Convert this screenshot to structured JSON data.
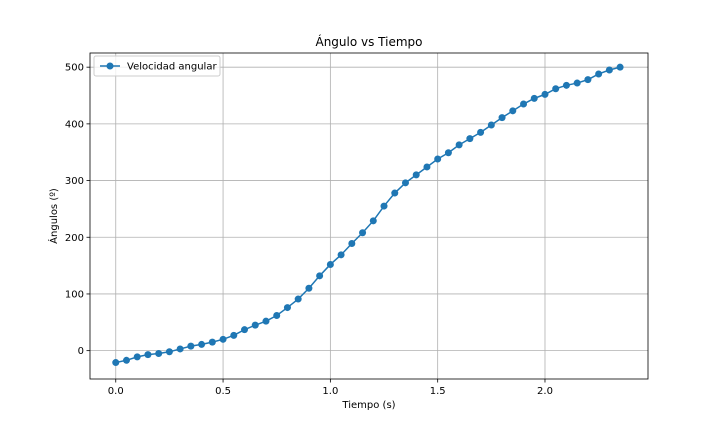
{
  "chart_data": {
    "type": "line",
    "title": "Ángulo vs Tiempo",
    "xlabel": "Tiempo (s)",
    "ylabel": "Ángulos (º)",
    "xlim": [
      -0.12,
      2.48
    ],
    "ylim": [
      -50,
      525
    ],
    "xticks": [
      0.0,
      0.5,
      1.0,
      1.5,
      2.0
    ],
    "xtick_labels": [
      "0.0",
      "0.5",
      "1.0",
      "1.5",
      "2.0"
    ],
    "yticks": [
      0,
      100,
      200,
      300,
      400,
      500
    ],
    "ytick_labels": [
      "0",
      "100",
      "200",
      "300",
      "400",
      "500"
    ],
    "grid": true,
    "legend": "upper-left",
    "series": [
      {
        "name": "Velocidad angular",
        "color": "#1f77b4",
        "marker": "circle",
        "x": [
          0.0,
          0.05,
          0.1,
          0.15,
          0.2,
          0.25,
          0.3,
          0.35,
          0.4,
          0.45,
          0.5,
          0.55,
          0.6,
          0.65,
          0.7,
          0.75,
          0.8,
          0.85,
          0.9,
          0.95,
          1.0,
          1.05,
          1.1,
          1.15,
          1.2,
          1.25,
          1.3,
          1.35,
          1.4,
          1.45,
          1.5,
          1.55,
          1.6,
          1.65,
          1.7,
          1.75,
          1.8,
          1.85,
          1.9,
          1.95,
          2.0,
          2.05,
          2.1,
          2.15,
          2.2,
          2.25,
          2.3,
          2.35
        ],
        "y": [
          -21,
          -17,
          -11,
          -7,
          -5,
          -2,
          3,
          8,
          11,
          15,
          20,
          27,
          37,
          45,
          52,
          62,
          76,
          91,
          110,
          132,
          152,
          169,
          189,
          208,
          229,
          255,
          278,
          296,
          310,
          324,
          338,
          349,
          363,
          374,
          385,
          398,
          411,
          423,
          435,
          445,
          452,
          462,
          468,
          472,
          478,
          488,
          495,
          500
        ]
      }
    ]
  }
}
